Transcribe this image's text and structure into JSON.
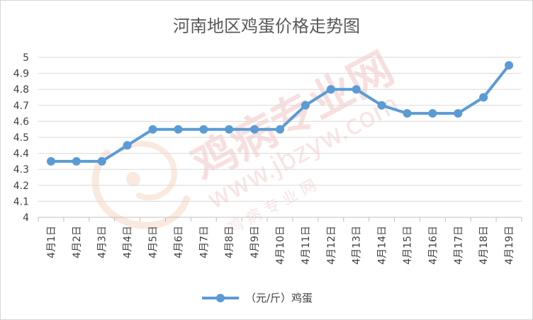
{
  "chart_data": {
    "type": "line",
    "title": "河南地区鸡蛋价格走势图",
    "categories": [
      "4月1日",
      "4月2日",
      "4月3日",
      "4月4日",
      "4月5日",
      "4月6日",
      "4月7日",
      "4月8日",
      "4月9日",
      "4月10日",
      "4月11日",
      "4月12日",
      "4月13日",
      "4月14日",
      "4月15日",
      "4月16日",
      "4月17日",
      "4月18日",
      "4月19日"
    ],
    "series": [
      {
        "name": "（元/斤）鸡蛋",
        "values": [
          4.35,
          4.35,
          4.35,
          4.45,
          4.55,
          4.55,
          4.55,
          4.55,
          4.55,
          4.55,
          4.7,
          4.8,
          4.8,
          4.7,
          4.65,
          4.65,
          4.65,
          4.75,
          4.95
        ],
        "color": "#5b9bd5"
      }
    ],
    "ylim": [
      4,
      5
    ],
    "yticks": [
      "4",
      "4.1",
      "4.2",
      "4.3",
      "4.4",
      "4.5",
      "4.6",
      "4.7",
      "4.8",
      "4.9",
      "5"
    ],
    "grid": true,
    "legend": "bottom",
    "watermark": {
      "cn": "鸡病专业网",
      "url": "www.jbzyw.com",
      "sub": "鸡 病 专 业 网"
    }
  }
}
